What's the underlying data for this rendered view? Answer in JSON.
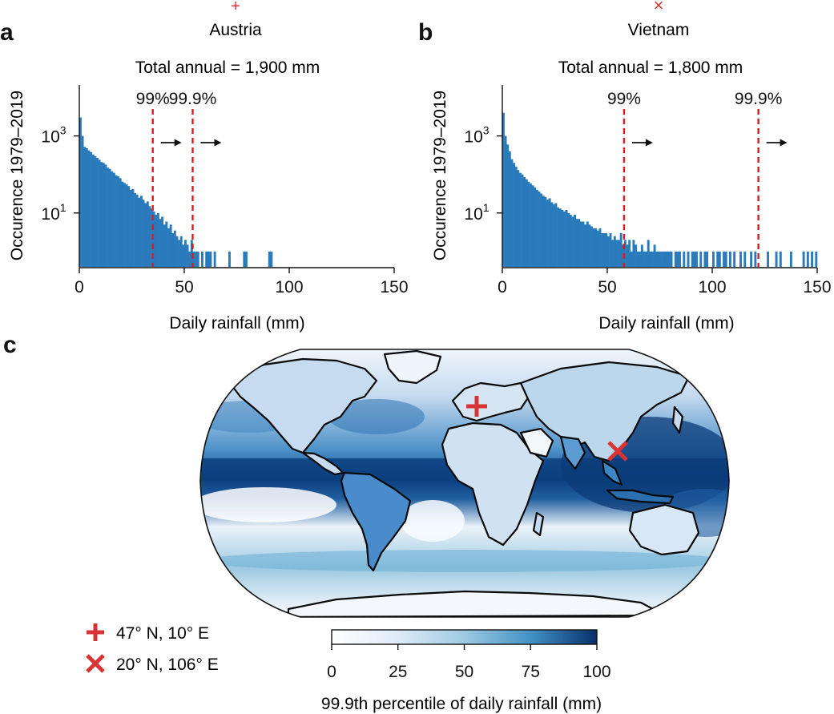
{
  "colors": {
    "bar": "#2a7bbb",
    "threshold": "#e01a1a",
    "marker": "#d93434",
    "ocean_dark": "#0d3f7e",
    "land_outline": "#0a0a0a"
  },
  "panel_letters": {
    "a": "a",
    "b": "b",
    "c": "c"
  },
  "chart_data": [
    {
      "type": "bar",
      "panel": "a",
      "title": "Austria",
      "marker": "+",
      "subtitle": "Total annual = 1,900 mm",
      "xlabel": "Daily rainfall (mm)",
      "ylabel": "Occurence 1979–2019",
      "xlim": [
        0,
        150
      ],
      "xticks": [
        0,
        50,
        100,
        150
      ],
      "yscale": "log",
      "ylim": [
        0.4,
        5000
      ],
      "yticks": [
        {
          "value": 10,
          "base": "10",
          "exp": "1"
        },
        {
          "value": 1000,
          "base": "10",
          "exp": "3"
        }
      ],
      "bin_width": 1,
      "bins": [
        [
          0,
          3000
        ],
        [
          1,
          1000
        ],
        [
          2,
          520
        ],
        [
          3,
          480
        ],
        [
          4,
          420
        ],
        [
          5,
          380
        ],
        [
          6,
          330
        ],
        [
          7,
          300
        ],
        [
          8,
          270
        ],
        [
          9,
          240
        ],
        [
          10,
          210
        ],
        [
          11,
          200
        ],
        [
          12,
          180
        ],
        [
          13,
          150
        ],
        [
          14,
          140
        ],
        [
          15,
          120
        ],
        [
          16,
          110
        ],
        [
          17,
          95
        ],
        [
          18,
          90
        ],
        [
          19,
          80
        ],
        [
          20,
          65
        ],
        [
          21,
          60
        ],
        [
          22,
          55
        ],
        [
          23,
          50
        ],
        [
          24,
          40
        ],
        [
          25,
          42
        ],
        [
          26,
          33
        ],
        [
          27,
          30
        ],
        [
          28,
          25
        ],
        [
          29,
          28
        ],
        [
          30,
          22
        ],
        [
          31,
          18
        ],
        [
          32,
          20
        ],
        [
          33,
          15
        ],
        [
          34,
          13
        ],
        [
          35,
          11
        ],
        [
          36,
          9
        ],
        [
          37,
          10
        ],
        [
          38,
          7
        ],
        [
          39,
          8
        ],
        [
          40,
          5
        ],
        [
          41,
          6
        ],
        [
          42,
          4
        ],
        [
          43,
          5
        ],
        [
          44,
          3
        ],
        [
          45,
          3.5
        ],
        [
          46,
          2.5
        ],
        [
          47,
          2
        ],
        [
          48,
          2.5
        ],
        [
          49,
          1.5
        ],
        [
          50,
          2
        ],
        [
          51,
          1.5
        ],
        [
          52,
          1
        ],
        [
          53,
          2
        ],
        [
          54,
          1
        ],
        [
          55,
          1
        ],
        [
          56,
          1
        ],
        [
          58,
          1
        ],
        [
          60,
          1
        ],
        [
          61,
          1
        ],
        [
          62,
          1
        ],
        [
          64,
          1
        ],
        [
          71,
          1
        ],
        [
          78,
          1
        ],
        [
          79,
          1
        ],
        [
          90,
          1
        ],
        [
          91,
          1
        ]
      ],
      "thresholds": [
        {
          "label": "99%",
          "value": 35
        },
        {
          "label": "99.9%",
          "value": 54
        }
      ]
    },
    {
      "type": "bar",
      "panel": "b",
      "title": "Vietnam",
      "marker": "×",
      "subtitle": "Total annual = 1,800 mm",
      "xlabel": "Daily rainfall (mm)",
      "ylabel": "Occurence 1979–2019",
      "xlim": [
        0,
        150
      ],
      "xticks": [
        0,
        50,
        100,
        150
      ],
      "yscale": "log",
      "ylim": [
        0.4,
        5000
      ],
      "yticks": [
        {
          "value": 10,
          "base": "10",
          "exp": "1"
        },
        {
          "value": 1000,
          "base": "10",
          "exp": "3"
        }
      ],
      "bin_width": 1,
      "bins": [
        [
          0,
          4000
        ],
        [
          1,
          1000
        ],
        [
          2,
          600
        ],
        [
          3,
          400
        ],
        [
          4,
          250
        ],
        [
          5,
          200
        ],
        [
          6,
          160
        ],
        [
          7,
          130
        ],
        [
          8,
          110
        ],
        [
          9,
          100
        ],
        [
          10,
          85
        ],
        [
          11,
          75
        ],
        [
          12,
          65
        ],
        [
          13,
          58
        ],
        [
          14,
          52
        ],
        [
          15,
          46
        ],
        [
          16,
          40
        ],
        [
          17,
          36
        ],
        [
          18,
          32
        ],
        [
          19,
          28
        ],
        [
          20,
          26
        ],
        [
          21,
          22
        ],
        [
          22,
          24
        ],
        [
          23,
          19
        ],
        [
          24,
          17
        ],
        [
          25,
          18
        ],
        [
          26,
          14
        ],
        [
          27,
          13
        ],
        [
          28,
          12
        ],
        [
          29,
          11
        ],
        [
          30,
          12
        ],
        [
          31,
          10
        ],
        [
          32,
          9
        ],
        [
          33,
          8
        ],
        [
          34,
          9
        ],
        [
          35,
          7
        ],
        [
          36,
          7
        ],
        [
          37,
          6
        ],
        [
          38,
          6
        ],
        [
          39,
          5
        ],
        [
          40,
          6
        ],
        [
          41,
          5
        ],
        [
          42,
          4.5
        ],
        [
          43,
          4
        ],
        [
          44,
          4
        ],
        [
          45,
          3.5
        ],
        [
          46,
          4
        ],
        [
          47,
          3
        ],
        [
          48,
          3
        ],
        [
          49,
          3
        ],
        [
          50,
          2.5
        ],
        [
          51,
          3
        ],
        [
          52,
          2
        ],
        [
          53,
          2.5
        ],
        [
          54,
          2
        ],
        [
          55,
          2
        ],
        [
          56,
          3
        ],
        [
          57,
          1.5
        ],
        [
          58,
          2
        ],
        [
          59,
          1.5
        ],
        [
          60,
          2
        ],
        [
          61,
          1
        ],
        [
          62,
          2
        ],
        [
          63,
          1.5
        ],
        [
          64,
          1
        ],
        [
          65,
          1
        ],
        [
          66,
          1.5
        ],
        [
          67,
          1
        ],
        [
          68,
          1
        ],
        [
          69,
          2
        ],
        [
          70,
          1
        ],
        [
          71,
          1
        ],
        [
          72,
          1.5
        ],
        [
          73,
          1
        ],
        [
          74,
          1
        ],
        [
          75,
          1
        ],
        [
          76,
          1
        ],
        [
          77,
          1
        ],
        [
          78,
          1
        ],
        [
          79,
          1
        ],
        [
          80,
          1
        ],
        [
          82,
          1
        ],
        [
          83,
          1
        ],
        [
          84,
          1
        ],
        [
          86,
          1
        ],
        [
          88,
          1
        ],
        [
          90,
          1
        ],
        [
          91,
          1
        ],
        [
          92,
          1
        ],
        [
          94,
          1
        ],
        [
          96,
          1
        ],
        [
          97,
          1
        ],
        [
          100,
          1
        ],
        [
          102,
          1
        ],
        [
          103,
          1
        ],
        [
          105,
          1
        ],
        [
          106,
          1
        ],
        [
          108,
          1
        ],
        [
          110,
          1
        ],
        [
          113,
          1
        ],
        [
          115,
          1
        ],
        [
          118,
          1
        ],
        [
          120,
          1
        ],
        [
          126,
          1
        ],
        [
          130,
          1
        ],
        [
          132,
          1
        ],
        [
          137,
          1
        ],
        [
          143,
          1
        ],
        [
          145,
          1
        ],
        [
          147,
          1
        ],
        [
          149,
          1
        ]
      ],
      "thresholds": [
        {
          "label": "99%",
          "value": 58
        },
        {
          "label": "99.9%",
          "value": 122
        }
      ]
    },
    {
      "type": "heatmap",
      "panel": "c",
      "projection": "Robinson",
      "colorbar": {
        "label": "99.9th percentile of daily rainfall (mm)",
        "ticks": [
          0,
          25,
          50,
          75,
          100
        ],
        "range": [
          0,
          100
        ],
        "colors": [
          "#ffffff",
          "#deebf7",
          "#9ecae1",
          "#4292c6",
          "#08306b"
        ]
      },
      "markers": [
        {
          "symbol": "+",
          "label": "47° N, 10° E",
          "lat": 47,
          "lon": 10
        },
        {
          "symbol": "×",
          "label": "20° N, 106° E",
          "lat": 20,
          "lon": 106
        }
      ]
    }
  ]
}
